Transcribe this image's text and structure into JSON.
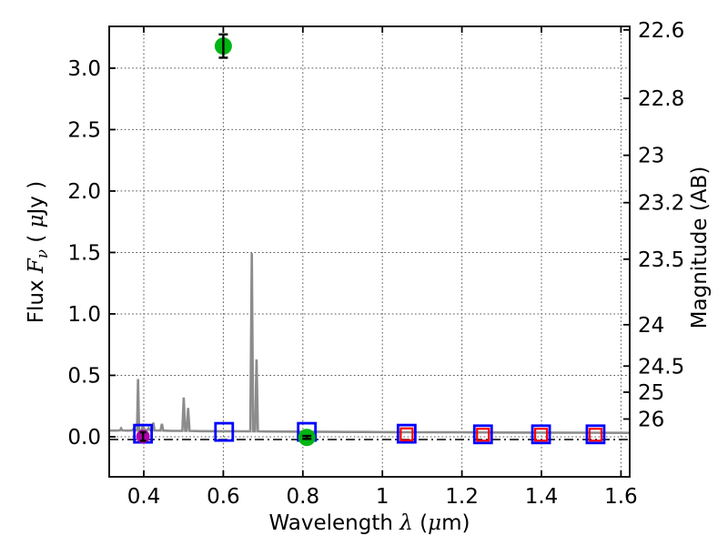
{
  "figure": {
    "background": "#ffffff",
    "frame_color": "#000000",
    "grid_color": "#555555"
  },
  "chart_data": {
    "type": "line+scatter",
    "title": "",
    "xlabel": "Wavelength λ (μm)",
    "ylabel_left": "Flux Fν ( μJy )",
    "ylabel_right": "Magnitude (AB)",
    "grid": true,
    "legend": "none",
    "ab_zeropoint": 23.9,
    "xlim": [
      0.313,
      1.622
    ],
    "ylim": [
      -0.326,
      3.34
    ],
    "x_ticks": [
      {
        "v": 0.4,
        "label": "0.4"
      },
      {
        "v": 0.6,
        "label": "0.6"
      },
      {
        "v": 0.8,
        "label": "0.8"
      },
      {
        "v": 1.0,
        "label": "1"
      },
      {
        "v": 1.2,
        "label": "1.2"
      },
      {
        "v": 1.4,
        "label": "1.4"
      },
      {
        "v": 1.6,
        "label": "1.6"
      }
    ],
    "y_ticks_left": [
      {
        "v": 0.0,
        "label": "0.0"
      },
      {
        "v": 0.5,
        "label": "0.5"
      },
      {
        "v": 1.0,
        "label": "1.0"
      },
      {
        "v": 1.5,
        "label": "1.5"
      },
      {
        "v": 2.0,
        "label": "2.0"
      },
      {
        "v": 2.5,
        "label": "2.5"
      },
      {
        "v": 3.0,
        "label": "3.0"
      }
    ],
    "y_ticks_right": [
      {
        "v": 22.6,
        "label": "22.6"
      },
      {
        "v": 22.8,
        "label": "22.8"
      },
      {
        "v": 23.0,
        "label": "23"
      },
      {
        "v": 23.2,
        "label": "23.2"
      },
      {
        "v": 23.5,
        "label": "23.5"
      },
      {
        "v": 24.0,
        "label": "24"
      },
      {
        "v": 24.5,
        "label": "24.5"
      },
      {
        "v": 25.0,
        "label": "25"
      },
      {
        "v": 26.0,
        "label": "26"
      }
    ],
    "zero_line": {
      "flux": -0.022,
      "style": "dash-dot",
      "color": "#000000"
    },
    "spectrum": {
      "name": "model-spectrum",
      "color": "#8c8c8c",
      "points": [
        [
          0.313,
          0.05
        ],
        [
          0.33,
          0.05
        ],
        [
          0.34,
          0.052
        ],
        [
          0.343,
          0.068
        ],
        [
          0.346,
          0.052
        ],
        [
          0.36,
          0.05
        ],
        [
          0.37,
          0.052
        ],
        [
          0.373,
          0.06
        ],
        [
          0.376,
          0.052
        ],
        [
          0.383,
          0.052
        ],
        [
          0.3855,
          0.47
        ],
        [
          0.388,
          0.052
        ],
        [
          0.394,
          0.052
        ],
        [
          0.398,
          0.088
        ],
        [
          0.402,
          0.056
        ],
        [
          0.408,
          0.052
        ],
        [
          0.412,
          0.07
        ],
        [
          0.416,
          0.052
        ],
        [
          0.421,
          0.052
        ],
        [
          0.424,
          0.115
        ],
        [
          0.427,
          0.052
        ],
        [
          0.442,
          0.05
        ],
        [
          0.4455,
          0.105
        ],
        [
          0.449,
          0.05
        ],
        [
          0.47,
          0.048
        ],
        [
          0.497,
          0.048
        ],
        [
          0.5005,
          0.32
        ],
        [
          0.504,
          0.048
        ],
        [
          0.508,
          0.048
        ],
        [
          0.5115,
          0.235
        ],
        [
          0.515,
          0.048
        ],
        [
          0.54,
          0.046
        ],
        [
          0.58,
          0.045
        ],
        [
          0.62,
          0.045
        ],
        [
          0.655,
          0.044
        ],
        [
          0.668,
          0.044
        ],
        [
          0.6715,
          1.495
        ],
        [
          0.675,
          0.044
        ],
        [
          0.68,
          0.044
        ],
        [
          0.6835,
          0.63
        ],
        [
          0.687,
          0.044
        ],
        [
          0.71,
          0.043
        ],
        [
          0.76,
          0.042
        ],
        [
          0.82,
          0.041
        ],
        [
          0.88,
          0.04
        ],
        [
          0.95,
          0.039
        ],
        [
          1.02,
          0.038
        ],
        [
          1.1,
          0.037
        ],
        [
          1.2,
          0.036
        ],
        [
          1.3,
          0.035
        ],
        [
          1.4,
          0.034
        ],
        [
          1.5,
          0.033
        ],
        [
          1.622,
          0.032
        ]
      ]
    },
    "series": [
      {
        "name": "photometry-blue-squares",
        "marker": "square-open",
        "color": "#0000ff",
        "size": 19,
        "stroke": 2.8,
        "points": [
          {
            "x": 0.398,
            "y": 0.025
          },
          {
            "x": 0.602,
            "y": 0.04
          },
          {
            "x": 0.81,
            "y": 0.04
          },
          {
            "x": 1.061,
            "y": 0.025
          },
          {
            "x": 1.253,
            "y": 0.02
          },
          {
            "x": 1.399,
            "y": 0.02
          },
          {
            "x": 1.536,
            "y": 0.02
          }
        ]
      },
      {
        "name": "photometry-red-squares",
        "marker": "square-open",
        "color": "#ff0000",
        "size": 13,
        "stroke": 2.2,
        "points": [
          {
            "x": 1.061,
            "y": 0.02
          },
          {
            "x": 1.253,
            "y": 0.017
          },
          {
            "x": 1.399,
            "y": 0.017
          },
          {
            "x": 1.536,
            "y": 0.017
          }
        ]
      },
      {
        "name": "detection-magenta-circle",
        "marker": "circle",
        "color": "#b000b0",
        "size": 15,
        "capsize": 7,
        "error_color": "#000000",
        "points": [
          {
            "x": 0.398,
            "y": 0.002,
            "yerr": 0.035
          }
        ]
      },
      {
        "name": "detection-green-circles",
        "marker": "circle",
        "color": "#00b414",
        "size": 19,
        "capsize": 10,
        "error_color": "#000000",
        "points": [
          {
            "x": 0.6,
            "y": 3.18,
            "yerr": 0.095
          },
          {
            "x": 0.81,
            "y": -0.005,
            "yerr": 0.012
          }
        ]
      }
    ],
    "label_segments": {
      "ylabel_left": [
        {
          "t": "Flux  "
        },
        {
          "t": "F",
          "i": 1,
          "serif": 1
        },
        {
          "t": "ν",
          "i": 1,
          "serif": 1,
          "dy": 5,
          "size": "72%"
        },
        {
          "t": "  ( ",
          "dy": -5
        },
        {
          "t": "μ",
          "i": 1,
          "serif": 1
        },
        {
          "t": "Jy )"
        }
      ],
      "xlabel": [
        {
          "t": "Wavelength  "
        },
        {
          "t": "λ",
          "i": 1,
          "serif": 1
        },
        {
          "t": " ("
        },
        {
          "t": "μ",
          "i": 1,
          "serif": 1
        },
        {
          "t": "m)"
        }
      ],
      "ylabel_right": [
        {
          "t": "Magnitude (AB)"
        }
      ]
    }
  }
}
